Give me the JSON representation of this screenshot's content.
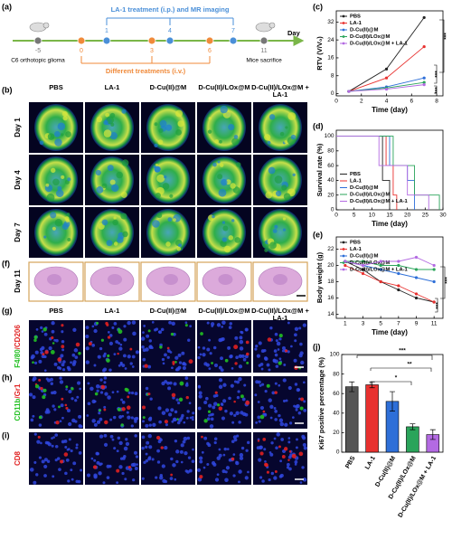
{
  "panel_labels": [
    "(a)",
    "(b)",
    "(c)",
    "(d)",
    "(e)",
    "(f)",
    "(g)",
    "(h)",
    "(i)",
    "(j)"
  ],
  "timeline": {
    "top_label": "LA-1 treatment (i.p.) and MR imaging",
    "bottom_label": "Different treatments (i.v.)",
    "axis_label": "Day",
    "start_label": "C6 orthotopic glioma",
    "end_label": "Mice sacrifice",
    "days": [
      -5,
      0,
      1,
      3,
      4,
      6,
      7,
      11
    ]
  },
  "mri": {
    "columns": [
      "PBS",
      "LA-1",
      "D-Cu(II)@M",
      "D-Cu(II)/LOx@M",
      "D-Cu(II)/LOx@M + LA-1"
    ],
    "rows": [
      "Day 1",
      "Day 4",
      "Day 7"
    ]
  },
  "histology": {
    "row": "Day 11"
  },
  "fluorescence": {
    "columns": [
      "PBS",
      "LA-1",
      "D-Cu(II)@M",
      "D-Cu(II)/LOx@M",
      "D-Cu(II)/LOx@M + LA-1"
    ],
    "rows": [
      {
        "parts": [
          "F4/80",
          "/CD206"
        ],
        "colors": [
          "#22c022",
          "#e02020"
        ]
      },
      {
        "parts": [
          "CD11b",
          "/Gr1"
        ],
        "colors": [
          "#22c022",
          "#e02020"
        ]
      },
      {
        "parts": [
          "CD8"
        ],
        "colors": [
          "#e02020"
        ]
      }
    ]
  },
  "chart_data": [
    {
      "type": "line",
      "x_label": "Time (day)",
      "y_label": "RTV (V/V₀)",
      "x": [
        1,
        4,
        7
      ],
      "xlim": [
        0,
        8.5
      ],
      "xticks": [
        0,
        2,
        4,
        6,
        8
      ],
      "ylim": [
        -1,
        37
      ],
      "yticks": [
        0,
        8,
        16,
        24,
        32
      ],
      "legend": "upper left",
      "series": [
        {
          "name": "PBS",
          "color": "#222222",
          "values": [
            1,
            11,
            34
          ]
        },
        {
          "name": "LA-1",
          "color": "#e8312f",
          "values": [
            1,
            7,
            21
          ]
        },
        {
          "name": "D-Cu(II)@M",
          "color": "#2e6fd8",
          "values": [
            1,
            3,
            7
          ]
        },
        {
          "name": "D-Cu(II)/LOx@M",
          "color": "#2aa45a",
          "values": [
            1,
            2.5,
            5
          ]
        },
        {
          "name": "D-Cu(II)/LOx@M + LA-1",
          "color": "#b36ae2",
          "values": [
            1,
            2,
            4
          ]
        }
      ],
      "annotations": [
        "***",
        "***",
        "***"
      ]
    },
    {
      "type": "line",
      "step": true,
      "x_label": "Time (day)",
      "y_label": "Survival rate (%)",
      "xlim": [
        0,
        30
      ],
      "xticks": [
        0,
        5,
        10,
        15,
        20,
        25,
        30
      ],
      "ylim": [
        0,
        108
      ],
      "yticks": [
        0,
        20,
        40,
        60,
        80,
        100
      ],
      "legend": "lower left",
      "series": [
        {
          "name": "PBS",
          "color": "#222222",
          "x": [
            0,
            13,
            15
          ],
          "values": [
            100,
            40,
            0
          ]
        },
        {
          "name": "LA-1",
          "color": "#e8312f",
          "x": [
            0,
            14,
            16,
            17
          ],
          "values": [
            100,
            60,
            20,
            0
          ]
        },
        {
          "name": "D-Cu(II)@M",
          "color": "#2e6fd8",
          "x": [
            0,
            15,
            20,
            22
          ],
          "values": [
            100,
            60,
            40,
            0
          ]
        },
        {
          "name": "D-Cu(II)/LOx@M",
          "color": "#2aa45a",
          "x": [
            0,
            16,
            22,
            29
          ],
          "values": [
            100,
            60,
            20,
            0
          ]
        },
        {
          "name": "D-Cu(II)/LOx@M + LA-1",
          "color": "#b36ae2",
          "x": [
            0,
            12,
            20,
            26
          ],
          "values": [
            100,
            60,
            20,
            0
          ]
        }
      ]
    },
    {
      "type": "line",
      "x_label": "Time (day)",
      "y_label": "Body weight (g)",
      "x": [
        1,
        3,
        5,
        7,
        9,
        11
      ],
      "xlim": [
        0,
        12
      ],
      "xticks": [
        1,
        3,
        5,
        7,
        9,
        11
      ],
      "ylim": [
        13.5,
        23.5
      ],
      "yticks": [
        14,
        16,
        18,
        20,
        22
      ],
      "legend": "upper left",
      "series": [
        {
          "name": "PBS",
          "color": "#222222",
          "values": [
            20.5,
            19.5,
            18,
            17,
            16,
            15.5
          ]
        },
        {
          "name": "LA-1",
          "color": "#e8312f",
          "values": [
            20,
            19,
            18,
            17.5,
            16.5,
            15.5
          ]
        },
        {
          "name": "D-Cu(II)@M",
          "color": "#2e6fd8",
          "values": [
            20.5,
            20,
            19.5,
            19,
            18.5,
            18
          ]
        },
        {
          "name": "D-Cu(II)/LOx@M",
          "color": "#2aa45a",
          "values": [
            20.5,
            20.5,
            20,
            20,
            19.5,
            19.5
          ]
        },
        {
          "name": "D-Cu(II)/LOx@M + LA-1",
          "color": "#b36ae2",
          "values": [
            20.5,
            20,
            20.5,
            20.5,
            21,
            20
          ]
        }
      ],
      "annotations": [
        "***",
        "***"
      ]
    },
    {
      "type": "bar",
      "y_label": "Ki67 positive percentage (%)",
      "categories": [
        "PBS",
        "LA-1",
        "D-Cu(II)@M",
        "D-Cu(II)/LOx@M",
        "D-Cu(II)/LOx@M + LA-1"
      ],
      "values": [
        67,
        69,
        52,
        26,
        18
      ],
      "errors": [
        5,
        3,
        10,
        3,
        5
      ],
      "colors": [
        "#555555",
        "#e8312f",
        "#2e6fd8",
        "#2aa45a",
        "#b36ae2"
      ],
      "ylim": [
        0,
        100
      ],
      "yticks": [
        0,
        20,
        40,
        60,
        80,
        100
      ],
      "annotations": [
        "***",
        "**",
        "*"
      ]
    }
  ]
}
